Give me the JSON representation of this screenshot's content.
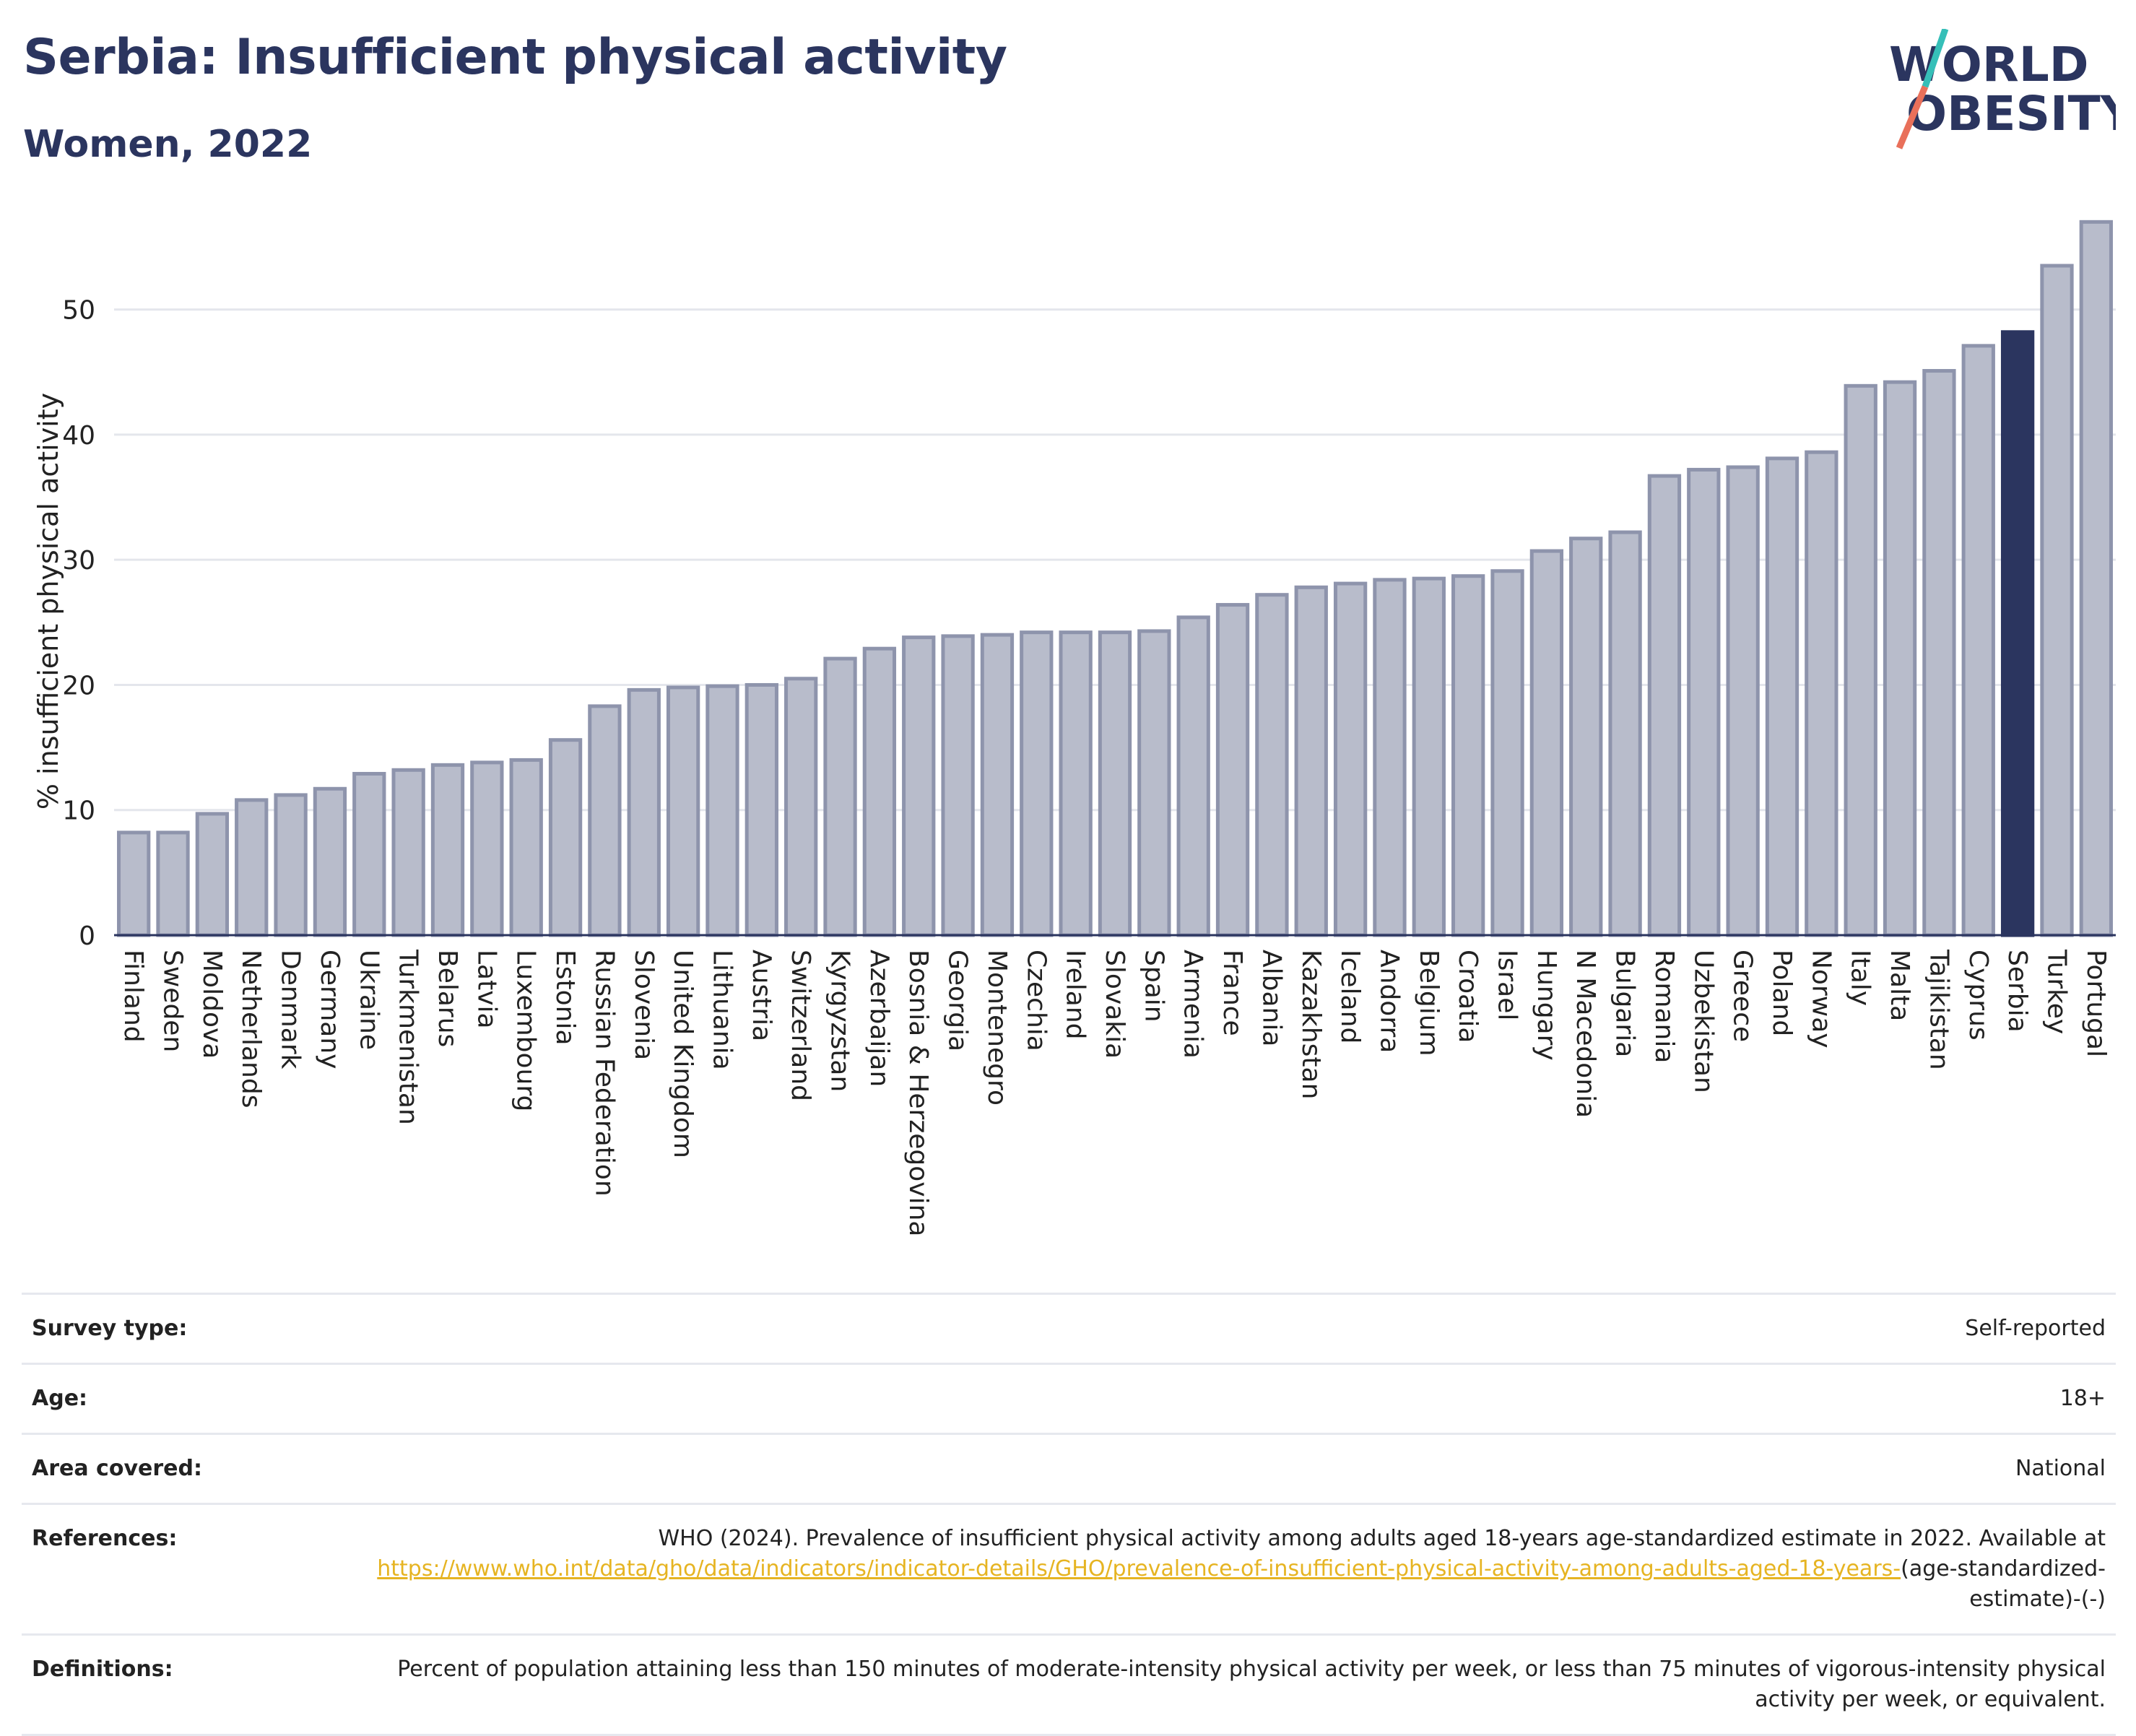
{
  "header": {
    "title": "Serbia: Insufficient physical activity",
    "subtitle": "Women, 2022",
    "logo_line1": "WORLD",
    "logo_line2": "OBESITY"
  },
  "colors": {
    "bar": "#b8bccb",
    "bar_stroke": "#8e94ac",
    "highlight": "#2b355f",
    "accent_teal": "#36bfb8",
    "accent_red": "#e9705a"
  },
  "chart_data": {
    "type": "bar",
    "ylabel": "% insufficient physical activity",
    "xlabel": "",
    "ylim": [
      0,
      58
    ],
    "yticks": [
      0,
      10,
      20,
      30,
      40,
      50
    ],
    "grid": true,
    "highlight": "Serbia",
    "categories": [
      "Finland",
      "Sweden",
      "Moldova",
      "Netherlands",
      "Denmark",
      "Germany",
      "Ukraine",
      "Turkmenistan",
      "Belarus",
      "Latvia",
      "Luxembourg",
      "Estonia",
      "Russian Federation",
      "Slovenia",
      "United Kingdom",
      "Lithuania",
      "Austria",
      "Switzerland",
      "Kyrgyzstan",
      "Azerbaijan",
      "Bosnia & Herzegovina",
      "Georgia",
      "Montenegro",
      "Czechia",
      "Ireland",
      "Slovakia",
      "Spain",
      "Armenia",
      "France",
      "Albania",
      "Kazakhstan",
      "Iceland",
      "Andorra",
      "Belgium",
      "Croatia",
      "Israel",
      "Hungary",
      "N Macedonia",
      "Bulgaria",
      "Romania",
      "Uzbekistan",
      "Greece",
      "Poland",
      "Norway",
      "Italy",
      "Malta",
      "Tajikistan",
      "Cyprus",
      "Serbia",
      "Turkey",
      "Portugal"
    ],
    "values": [
      8.2,
      8.2,
      9.7,
      10.8,
      11.2,
      11.7,
      12.9,
      13.2,
      13.6,
      13.8,
      14.0,
      15.6,
      18.3,
      19.6,
      19.8,
      19.9,
      20.0,
      20.5,
      22.1,
      22.9,
      23.8,
      23.9,
      24.0,
      24.2,
      24.2,
      24.2,
      24.3,
      25.4,
      26.4,
      27.2,
      27.8,
      28.1,
      28.4,
      28.5,
      28.7,
      29.1,
      30.7,
      31.7,
      32.2,
      36.7,
      37.2,
      37.4,
      38.1,
      38.6,
      43.9,
      44.2,
      45.1,
      47.1,
      48.2,
      53.5,
      57.0
    ]
  },
  "info": {
    "survey_type": {
      "label": "Survey type:",
      "value": "Self-reported"
    },
    "age": {
      "label": "Age:",
      "value": "18+"
    },
    "area": {
      "label": "Area covered:",
      "value": "National"
    },
    "references": {
      "label": "References:",
      "text": "WHO (2024). Prevalence of insufficient physical activity among adults aged 18-years age-standardized estimate in 2022. Available at",
      "link": "https://www.who.int/data/gho/data/indicators/indicator-details/GHO/prevalence-of-insufficient-physical-activity-among-adults-aged-18-years-",
      "tail": "(age-standardized-estimate)-(-)"
    },
    "definitions": {
      "label": "Definitions:",
      "value": "Percent of population attaining less than 150 minutes of moderate-intensity physical activity per week, or less than 75 minutes of vigorous-intensity physical activity per week, or equivalent."
    }
  }
}
